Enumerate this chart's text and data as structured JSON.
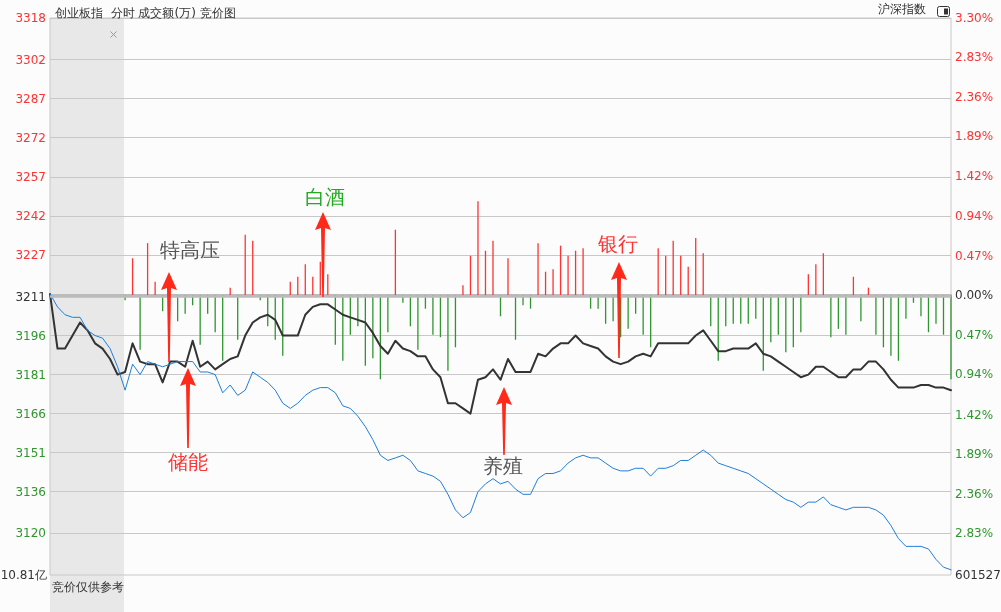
{
  "chart_data": {
    "type": "line",
    "title": "创业板指  分时 成交额(万) 竞价图",
    "categories": [
      null,
      null,
      null,
      null,
      null,
      null,
      null,
      null,
      null,
      null,
      null,
      null,
      null,
      null,
      null,
      null,
      null,
      null,
      null,
      null,
      null,
      null,
      null,
      null,
      null,
      null,
      null,
      null,
      null,
      null,
      null,
      null,
      null,
      null,
      null,
      null,
      null,
      null,
      null,
      null,
      null,
      null,
      null,
      null,
      null,
      null,
      null,
      null,
      null,
      null,
      null,
      null,
      null,
      null,
      null,
      null,
      null,
      null,
      null,
      null,
      null,
      null,
      null,
      null,
      null,
      null,
      null,
      null,
      null,
      null,
      null,
      null,
      null,
      null,
      null,
      null,
      null,
      null,
      null,
      null,
      null,
      null,
      null,
      null,
      null,
      null,
      null,
      null,
      null,
      null,
      null,
      null,
      null,
      null,
      null,
      null,
      null,
      null,
      null,
      null,
      null,
      null,
      null,
      null,
      null,
      null,
      null,
      null,
      null,
      null,
      null,
      null,
      null,
      null,
      null,
      null,
      null,
      null,
      null,
      null,
      null
    ],
    "series": [
      {
        "type": "bar",
        "axis": "y2",
        "color": "#ff3333",
        "values": [
          null,
          null,
          null,
          null,
          null,
          null,
          null,
          null,
          null,
          null,
          null,
          0.44,
          null,
          0.62,
          0.16,
          null,
          null,
          null,
          null,
          null,
          null,
          null,
          null,
          null,
          0.09,
          null,
          0.72,
          0.65,
          null,
          null,
          null,
          null,
          0.16,
          0.22,
          0.37,
          0.22,
          0.4,
          0.25,
          null,
          null,
          null,
          null,
          null,
          null,
          null,
          null,
          0.78,
          null,
          null,
          null,
          null,
          null,
          null,
          null,
          null,
          0.12,
          0.47,
          1.12,
          0.53,
          0.65,
          null,
          0.44,
          null,
          null,
          null,
          0.62,
          0.28,
          0.31,
          0.59,
          0.47,
          0.53,
          0.56,
          null,
          null,
          null,
          null,
          null,
          null,
          null,
          null,
          null,
          0.56,
          0.47,
          0.65,
          0.47,
          0.34,
          0.68,
          0.5,
          null,
          null,
          null,
          null,
          null,
          null,
          null,
          null,
          null,
          null,
          null,
          null,
          null,
          0.25,
          0.37,
          0.5,
          null,
          null,
          null,
          0.22,
          null,
          0.09,
          null,
          null,
          null,
          null,
          null,
          null,
          null,
          null,
          null,
          null,
          null
        ]
      },
      {
        "type": "bar",
        "axis": "y2",
        "color": "#2f962f",
        "values": [
          null,
          null,
          null,
          null,
          null,
          null,
          null,
          null,
          null,
          null,
          -0.06,
          null,
          -0.65,
          null,
          null,
          -0.19,
          null,
          -0.31,
          -0.22,
          -0.12,
          -0.59,
          -0.22,
          -0.44,
          -0.78,
          null,
          -0.53,
          null,
          null,
          -0.06,
          -0.37,
          -0.53,
          -0.72,
          null,
          null,
          null,
          null,
          null,
          null,
          -0.59,
          -0.78,
          -0.47,
          -0.37,
          -0.84,
          -0.75,
          -1.0,
          -0.44,
          null,
          -0.09,
          -0.37,
          -0.65,
          -0.16,
          -0.47,
          -0.5,
          -0.9,
          -0.62,
          null,
          null,
          null,
          null,
          null,
          -0.25,
          null,
          -0.53,
          -0.12,
          -0.16,
          null,
          null,
          null,
          null,
          null,
          null,
          null,
          -0.16,
          -0.16,
          -0.34,
          -0.31,
          -0.5,
          -0.4,
          -0.22,
          -0.47,
          -0.62,
          null,
          null,
          null,
          null,
          null,
          null,
          null,
          -0.37,
          -0.78,
          -0.37,
          -0.34,
          -0.34,
          -0.34,
          -0.28,
          -0.9,
          -0.56,
          -0.47,
          -0.68,
          -0.62,
          -0.44,
          null,
          null,
          null,
          -0.5,
          -0.4,
          -0.47,
          null,
          -0.31,
          null,
          -0.47,
          -0.62,
          -0.72,
          -0.78,
          -0.28,
          -0.09,
          -0.25,
          -0.44,
          -0.34,
          -0.47,
          -1.0
        ]
      },
      {
        "color": "#333333",
        "values": [
          3212,
          3191,
          3191,
          3196,
          3201,
          3198,
          3193,
          3191,
          3187,
          3181,
          3182,
          3193,
          3186,
          3185,
          3185,
          3178,
          3186,
          3186,
          3184,
          3194,
          3184,
          3186,
          3183,
          3185,
          3187,
          3188,
          3196,
          3201,
          3203,
          3204,
          3202,
          3196,
          3196,
          3196,
          3204,
          3207,
          3208,
          3208,
          3206,
          3204,
          3203,
          3202,
          3201,
          3197,
          3192,
          3189,
          3194,
          3191,
          3190,
          3188,
          3188,
          3183,
          3180,
          3170,
          3170,
          3168,
          3166,
          3179,
          3180,
          3183,
          3179,
          3187,
          3182,
          3182,
          3182,
          3189,
          3188,
          3191,
          3193,
          3193,
          3196,
          3193,
          3192,
          3191,
          3188,
          3186,
          3185,
          3186,
          3188,
          3189,
          3188,
          3193,
          3193,
          3193,
          3193,
          3193,
          3196,
          3198,
          3194,
          3190,
          3190,
          3191,
          3191,
          3191,
          3193,
          3189,
          3188,
          3186,
          3184,
          3182,
          3180,
          3181,
          3184,
          3184,
          3182,
          3180,
          3180,
          3183,
          3183,
          3186,
          3186,
          3183,
          3179,
          3176,
          3176,
          3176,
          3177,
          3177,
          3176,
          3176,
          3175
        ]
      },
      {
        "color": "#1e7fd8",
        "values": [
          3212,
          3207,
          3204,
          3203,
          3203,
          3198,
          3196,
          3195,
          3191,
          3184,
          3175,
          3185,
          3181,
          3186,
          3185,
          3184,
          3185,
          3186,
          3186,
          3186,
          3182,
          3182,
          3181,
          3174,
          3177,
          3173,
          3175,
          3182,
          3180,
          3178,
          3175,
          3170,
          3168,
          3170,
          3173,
          3175,
          3176,
          3176,
          3174,
          3169,
          3168,
          3165,
          3161,
          3156,
          3150,
          3148,
          3149,
          3150,
          3148,
          3144,
          3143,
          3142,
          3140,
          3135,
          3129,
          3126,
          3128,
          3136,
          3139,
          3141,
          3139,
          3140,
          3137,
          3135,
          3135,
          3141,
          3143,
          3143,
          3144,
          3147,
          3149,
          3150,
          3149,
          3149,
          3147,
          3145,
          3144,
          3144,
          3145,
          3145,
          3142,
          3145,
          3145,
          3146,
          3148,
          3148,
          3150,
          3152,
          3150,
          3147,
          3146,
          3145,
          3144,
          3143,
          3141,
          3139,
          3137,
          3135,
          3133,
          3132,
          3130,
          3132,
          3132,
          3134,
          3131,
          3130,
          3129,
          3130,
          3130,
          3130,
          3129,
          3127,
          3123,
          3118,
          3115,
          3115,
          3115,
          3114,
          3110,
          3107,
          3106
        ]
      }
    ],
    "ylim": [
      3104,
      3318
    ],
    "yticks": [
      3318,
      3302,
      3287,
      3272,
      3257,
      3242,
      3227,
      3211,
      3196,
      3181,
      3166,
      3151,
      3136,
      3120
    ],
    "y2lim": [
      -3.33,
      3.3
    ],
    "y2ticks": [
      {
        "value": 3.3,
        "label": "3.30%"
      },
      {
        "value": 2.83,
        "label": "2.83%"
      },
      {
        "value": 2.36,
        "label": "2.36%"
      },
      {
        "value": 1.89,
        "label": "1.89%"
      },
      {
        "value": 1.42,
        "label": "1.42%"
      },
      {
        "value": 0.94,
        "label": "0.94%"
      },
      {
        "value": 0.47,
        "label": "0.47%"
      },
      {
        "value": 0,
        "label": "0.00%"
      },
      {
        "value": -0.47,
        "label": "0.47%"
      },
      {
        "value": -0.94,
        "label": "0.94%"
      },
      {
        "value": -1.42,
        "label": "1.42%"
      },
      {
        "value": -1.89,
        "label": "1.89%"
      },
      {
        "value": -2.36,
        "label": "2.36%"
      },
      {
        "value": -2.83,
        "label": "2.83%"
      }
    ],
    "ref_lines": [
      {
        "axis": "y",
        "value": 3211,
        "color": "#bbbbbb"
      }
    ],
    "annotations": [
      "沪深指数",
      "特高压",
      "白酒",
      "银行",
      "储能",
      "养殖",
      "10.81亿",
      "601527",
      "竞价仅供参考"
    ],
    "grid": "y"
  }
}
